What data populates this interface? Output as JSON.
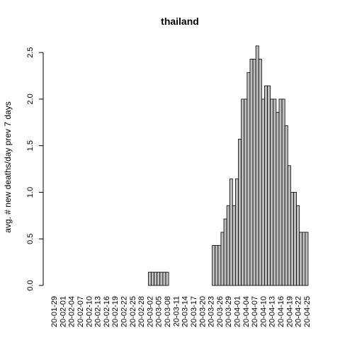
{
  "chart_data": {
    "type": "bar",
    "title": "thailand",
    "xlabel": "",
    "ylabel": "avg. # new deaths/day prev  7  days",
    "ylim": [
      0,
      2.6
    ],
    "yticks": [
      "0.0",
      "0.5",
      "1.0",
      "1.5",
      "2.0",
      "2.5"
    ],
    "categories": [
      "20-01-29",
      "20-01-30",
      "20-01-31",
      "20-02-01",
      "20-02-02",
      "20-02-03",
      "20-02-04",
      "20-02-05",
      "20-02-06",
      "20-02-07",
      "20-02-08",
      "20-02-09",
      "20-02-10",
      "20-02-11",
      "20-02-12",
      "20-02-13",
      "20-02-14",
      "20-02-15",
      "20-02-16",
      "20-02-17",
      "20-02-18",
      "20-02-19",
      "20-02-20",
      "20-02-21",
      "20-02-22",
      "20-02-23",
      "20-02-24",
      "20-02-25",
      "20-02-26",
      "20-02-27",
      "20-02-28",
      "20-02-29",
      "20-03-01",
      "20-03-02",
      "20-03-03",
      "20-03-04",
      "20-03-05",
      "20-03-06",
      "20-03-07",
      "20-03-08",
      "20-03-09",
      "20-03-10",
      "20-03-11",
      "20-03-12",
      "20-03-13",
      "20-03-14",
      "20-03-15",
      "20-03-16",
      "20-03-17",
      "20-03-18",
      "20-03-19",
      "20-03-20",
      "20-03-21",
      "20-03-22",
      "20-03-23",
      "20-03-24",
      "20-03-25",
      "20-03-26",
      "20-03-27",
      "20-03-28",
      "20-03-29",
      "20-03-30",
      "20-03-31",
      "20-04-01",
      "20-04-02",
      "20-04-03",
      "20-04-04",
      "20-04-05",
      "20-04-06",
      "20-04-07",
      "20-04-08",
      "20-04-09",
      "20-04-10",
      "20-04-11",
      "20-04-12",
      "20-04-13",
      "20-04-14",
      "20-04-15",
      "20-04-16",
      "20-04-17",
      "20-04-18",
      "20-04-19",
      "20-04-20",
      "20-04-21",
      "20-04-22",
      "20-04-23",
      "20-04-24",
      "20-04-25"
    ],
    "values": [
      0,
      0,
      0,
      0,
      0,
      0,
      0,
      0,
      0,
      0,
      0,
      0,
      0,
      0,
      0,
      0,
      0,
      0,
      0,
      0,
      0,
      0,
      0,
      0,
      0,
      0,
      0,
      0,
      0,
      0,
      0,
      0,
      0,
      0.143,
      0.143,
      0.143,
      0.143,
      0.143,
      0.143,
      0.143,
      0,
      0,
      0,
      0,
      0,
      0,
      0,
      0,
      0,
      0,
      0,
      0,
      0,
      0,
      0,
      0.429,
      0.429,
      0.429,
      0.571,
      0.714,
      0.857,
      1.143,
      0.857,
      1.143,
      1.571,
      2.0,
      2.0,
      2.286,
      2.429,
      2.429,
      2.571,
      2.429,
      2.0,
      2.143,
      2.143,
      2.0,
      2.0,
      1.857,
      2.0,
      2.0,
      1.714,
      1.286,
      1.0,
      1.0,
      0.857,
      0.571,
      0.571,
      0.571
    ],
    "tick_labels": [
      "20-01-29",
      "20-02-01",
      "20-02-04",
      "20-02-07",
      "20-02-10",
      "20-02-13",
      "20-02-16",
      "20-02-19",
      "20-02-22",
      "20-02-25",
      "20-02-28",
      "20-03-02",
      "20-03-05",
      "20-03-08",
      "20-03-11",
      "20-03-14",
      "20-03-17",
      "20-03-20",
      "20-03-23",
      "20-03-26",
      "20-03-29",
      "20-04-01",
      "20-04-04",
      "20-04-07",
      "20-04-10",
      "20-04-13",
      "20-04-16",
      "20-04-19",
      "20-04-22",
      "20-04-25"
    ],
    "grid": false,
    "legend": "none"
  }
}
